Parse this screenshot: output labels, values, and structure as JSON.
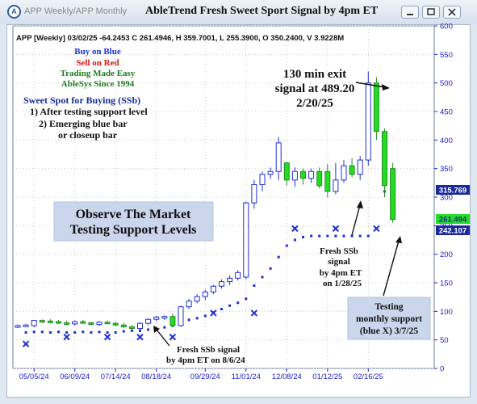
{
  "window": {
    "title": "APP Weekly/APP Monthly",
    "chart_title": "AbleTrend Fresh Sweet Sport Signal by 4pm ET"
  },
  "header": {
    "info": "APP [Weekly] 03/02/25 -64.2453 C 261.4946, H 359.7001, L 255.3900, O 350.2400, V 3.9228M"
  },
  "legend": {
    "buy": "Buy on Blue",
    "sell": "Sell on Red",
    "tagline1": "Trading Made Easy",
    "tagline2": "AbleSys Since 1994",
    "buy_color": "#1f2fd6",
    "sell_color": "#e01010",
    "tag_color": "#1e7a1e"
  },
  "notes": {
    "sweet_title": "Sweet Spot for Buying (SSb)",
    "sweet_1": "1) After testing support level",
    "sweet_2": "2) Emerging blue bar",
    "sweet_3": "or closeup bar",
    "observe_1": "Observe The Market",
    "observe_2": "Testing Support Levels",
    "exit_1": "130 min exit",
    "exit_2": "signal at 489.20",
    "exit_3": "2/20/25",
    "ssb1_1": "Fresh SSb signal",
    "ssb1_2": "by 4pm ET on 8/6/24",
    "ssb2_1": "Fresh SSb",
    "ssb2_2": "signal",
    "ssb2_3": "by 4pm ET",
    "ssb2_4": "on 1/28/25",
    "test_1": "Testing",
    "test_2": "monthly support",
    "test_3": "(blue X) 3/7/25"
  },
  "price_tags": {
    "a": "315.769",
    "b": "261.494",
    "c": "242.107"
  },
  "chart_data": {
    "type": "candlestick",
    "ylim": [
      0,
      600
    ],
    "y_ticks": [
      "0",
      "50",
      "100",
      "150",
      "200",
      "250",
      "300",
      "350",
      "400",
      "450",
      "500",
      "550",
      "600"
    ],
    "x_ticks": [
      "05/05/24",
      "06/09/24",
      "07/14/24",
      "08/18/24",
      "09/29/24",
      "11/01/24",
      "12/08/24",
      "01/12/25",
      "02/16/25"
    ],
    "x_tick_index": [
      2,
      7,
      12,
      17,
      23,
      28,
      33,
      38,
      43
    ],
    "grid": true,
    "colors": {
      "blue": "#1f2fd6",
      "green": "#22dd22",
      "axis": "#2020d0"
    },
    "candles": [
      {
        "o": 74,
        "h": 77,
        "l": 71,
        "c": 75,
        "col": "b"
      },
      {
        "o": 75,
        "h": 78,
        "l": 73,
        "c": 76,
        "col": "b"
      },
      {
        "o": 75,
        "h": 85,
        "l": 72,
        "c": 84,
        "col": "b"
      },
      {
        "o": 84,
        "h": 86,
        "l": 80,
        "c": 83,
        "col": "g"
      },
      {
        "o": 83,
        "h": 86,
        "l": 79,
        "c": 82,
        "col": "g"
      },
      {
        "o": 82,
        "h": 85,
        "l": 78,
        "c": 80,
        "col": "g"
      },
      {
        "o": 80,
        "h": 84,
        "l": 75,
        "c": 78,
        "col": "g"
      },
      {
        "o": 78,
        "h": 84,
        "l": 75,
        "c": 82,
        "col": "b"
      },
      {
        "o": 82,
        "h": 85,
        "l": 78,
        "c": 80,
        "col": "g"
      },
      {
        "o": 80,
        "h": 82,
        "l": 75,
        "c": 77,
        "col": "g"
      },
      {
        "o": 77,
        "h": 83,
        "l": 74,
        "c": 81,
        "col": "b"
      },
      {
        "o": 81,
        "h": 84,
        "l": 78,
        "c": 79,
        "col": "g"
      },
      {
        "o": 79,
        "h": 82,
        "l": 74,
        "c": 76,
        "col": "g"
      },
      {
        "o": 76,
        "h": 80,
        "l": 71,
        "c": 73,
        "col": "g"
      },
      {
        "o": 73,
        "h": 76,
        "l": 67,
        "c": 70,
        "col": "g"
      },
      {
        "o": 70,
        "h": 81,
        "l": 66,
        "c": 79,
        "col": "b"
      },
      {
        "o": 79,
        "h": 88,
        "l": 76,
        "c": 86,
        "col": "b"
      },
      {
        "o": 86,
        "h": 92,
        "l": 83,
        "c": 90,
        "col": "b"
      },
      {
        "o": 90,
        "h": 93,
        "l": 85,
        "c": 91,
        "col": "b"
      },
      {
        "o": 91,
        "h": 96,
        "l": 72,
        "c": 75,
        "col": "g"
      },
      {
        "o": 75,
        "h": 110,
        "l": 73,
        "c": 108,
        "col": "b"
      },
      {
        "o": 108,
        "h": 122,
        "l": 104,
        "c": 118,
        "col": "b"
      },
      {
        "o": 118,
        "h": 130,
        "l": 114,
        "c": 126,
        "col": "b"
      },
      {
        "o": 126,
        "h": 138,
        "l": 120,
        "c": 134,
        "col": "b"
      },
      {
        "o": 134,
        "h": 146,
        "l": 130,
        "c": 144,
        "col": "b"
      },
      {
        "o": 144,
        "h": 156,
        "l": 140,
        "c": 152,
        "col": "b"
      },
      {
        "o": 152,
        "h": 163,
        "l": 146,
        "c": 158,
        "col": "b"
      },
      {
        "o": 158,
        "h": 172,
        "l": 154,
        "c": 168,
        "col": "b"
      },
      {
        "o": 160,
        "h": 292,
        "l": 156,
        "c": 290,
        "col": "b"
      },
      {
        "o": 290,
        "h": 330,
        "l": 280,
        "c": 322,
        "col": "b"
      },
      {
        "o": 322,
        "h": 345,
        "l": 310,
        "c": 340,
        "col": "b"
      },
      {
        "o": 340,
        "h": 352,
        "l": 332,
        "c": 345,
        "col": "b"
      },
      {
        "o": 345,
        "h": 405,
        "l": 330,
        "c": 395,
        "col": "b"
      },
      {
        "o": 360,
        "h": 362,
        "l": 320,
        "c": 330,
        "col": "g"
      },
      {
        "o": 330,
        "h": 352,
        "l": 318,
        "c": 345,
        "col": "b"
      },
      {
        "o": 345,
        "h": 350,
        "l": 322,
        "c": 333,
        "col": "g"
      },
      {
        "o": 333,
        "h": 350,
        "l": 325,
        "c": 345,
        "col": "b"
      },
      {
        "o": 345,
        "h": 352,
        "l": 315,
        "c": 320,
        "col": "g"
      },
      {
        "o": 345,
        "h": 358,
        "l": 300,
        "c": 310,
        "col": "g"
      },
      {
        "o": 310,
        "h": 360,
        "l": 305,
        "c": 330,
        "col": "b"
      },
      {
        "o": 330,
        "h": 365,
        "l": 325,
        "c": 355,
        "col": "b"
      },
      {
        "o": 355,
        "h": 368,
        "l": 335,
        "c": 340,
        "col": "g"
      },
      {
        "o": 340,
        "h": 372,
        "l": 330,
        "c": 365,
        "col": "b"
      },
      {
        "o": 365,
        "h": 520,
        "l": 355,
        "c": 500,
        "col": "b"
      },
      {
        "o": 500,
        "h": 510,
        "l": 400,
        "c": 415,
        "col": "g"
      },
      {
        "o": 415,
        "h": 420,
        "l": 300,
        "c": 320,
        "col": "g"
      },
      {
        "o": 350,
        "h": 360,
        "l": 255,
        "c": 261,
        "col": "g"
      }
    ],
    "dots": [
      {
        "i": 1,
        "v": 63
      },
      {
        "i": 2,
        "v": 64
      },
      {
        "i": 3,
        "v": 64
      },
      {
        "i": 4,
        "v": 63
      },
      {
        "i": 5,
        "v": 64
      },
      {
        "i": 6,
        "v": 63
      },
      {
        "i": 7,
        "v": 63
      },
      {
        "i": 8,
        "v": 64
      },
      {
        "i": 9,
        "v": 63
      },
      {
        "i": 10,
        "v": 64
      },
      {
        "i": 11,
        "v": 63
      },
      {
        "i": 12,
        "v": 63
      },
      {
        "i": 13,
        "v": 65
      },
      {
        "i": 14,
        "v": 66
      },
      {
        "i": 15,
        "v": 66
      },
      {
        "i": 16,
        "v": 68
      },
      {
        "i": 17,
        "v": 69
      },
      {
        "i": 18,
        "v": 72
      },
      {
        "i": 19,
        "v": 75
      },
      {
        "i": 20,
        "v": 80
      },
      {
        "i": 21,
        "v": 85
      },
      {
        "i": 22,
        "v": 88
      },
      {
        "i": 23,
        "v": 92
      },
      {
        "i": 24,
        "v": 98
      },
      {
        "i": 25,
        "v": 104
      },
      {
        "i": 26,
        "v": 110
      },
      {
        "i": 27,
        "v": 115
      },
      {
        "i": 28,
        "v": 122
      },
      {
        "i": 29,
        "v": 145
      },
      {
        "i": 30,
        "v": 160
      },
      {
        "i": 31,
        "v": 175
      },
      {
        "i": 32,
        "v": 195
      },
      {
        "i": 33,
        "v": 215
      },
      {
        "i": 34,
        "v": 225
      },
      {
        "i": 35,
        "v": 230
      },
      {
        "i": 36,
        "v": 232
      },
      {
        "i": 37,
        "v": 232
      },
      {
        "i": 38,
        "v": 232
      },
      {
        "i": 39,
        "v": 232
      },
      {
        "i": 40,
        "v": 232
      },
      {
        "i": 41,
        "v": 232
      },
      {
        "i": 42,
        "v": 232
      },
      {
        "i": 43,
        "v": 232
      },
      {
        "i": 45,
        "v": 310
      },
      {
        "i": 46,
        "v": 315
      }
    ],
    "xmarks": [
      {
        "i": 1,
        "v": 43
      },
      {
        "i": 6,
        "v": 55
      },
      {
        "i": 11,
        "v": 55
      },
      {
        "i": 15,
        "v": 55
      },
      {
        "i": 19,
        "v": 55
      },
      {
        "i": 24,
        "v": 97
      },
      {
        "i": 29,
        "v": 97
      },
      {
        "i": 34,
        "v": 245
      },
      {
        "i": 39,
        "v": 245
      },
      {
        "i": 44,
        "v": 245
      }
    ]
  }
}
